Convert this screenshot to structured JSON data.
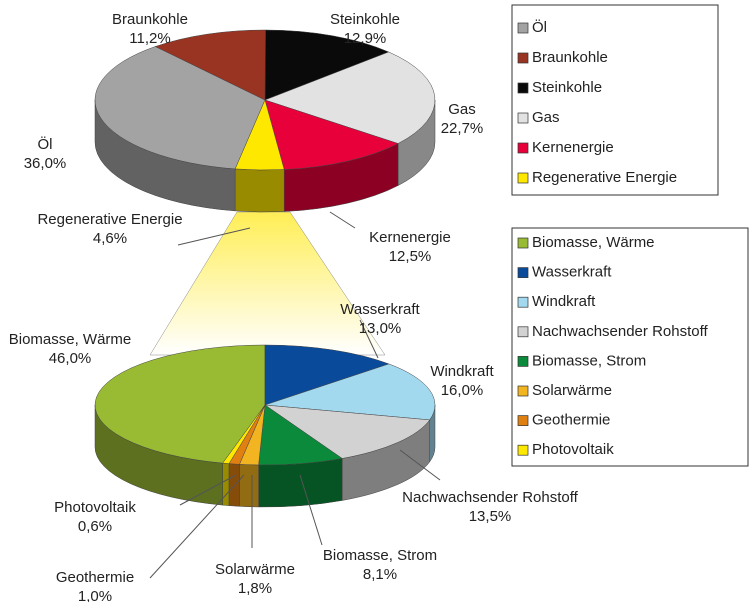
{
  "chart_data": [
    {
      "type": "pie",
      "legend": "right",
      "categories": [
        "Öl",
        "Braunkohle",
        "Steinkohle",
        "Gas",
        "Kernenergie",
        "Regenerative Energie"
      ],
      "values": [
        36.0,
        11.2,
        12.9,
        22.7,
        12.5,
        4.6
      ],
      "value_labels": [
        "36,0%",
        "11,2%",
        "12,9%",
        "22,7%",
        "12,5%",
        "4,6%"
      ],
      "colors": [
        "#a3a3a3",
        "#993322",
        "#0a0a0a",
        "#e2e2e2",
        "#e8003a",
        "#ffe800"
      ]
    },
    {
      "type": "pie",
      "legend": "right",
      "categories": [
        "Biomasse, Wärme",
        "Wasserkraft",
        "Windkraft",
        "Nachwachsender Rohstoff",
        "Biomasse, Strom",
        "Solarwärme",
        "Geothermie",
        "Photovoltaik"
      ],
      "values": [
        46.0,
        13.0,
        16.0,
        13.5,
        8.1,
        1.8,
        1.0,
        0.6
      ],
      "value_labels": [
        "46,0%",
        "13,0%",
        "16,0%",
        "13,5%",
        "8,1%",
        "1,8%",
        "1,0%",
        "0,6%"
      ],
      "colors": [
        "#99bb33",
        "#0a4a9a",
        "#a3d9ee",
        "#d2d2d2",
        "#0a8a3a",
        "#f2b420",
        "#e08010",
        "#ffe800"
      ]
    }
  ]
}
